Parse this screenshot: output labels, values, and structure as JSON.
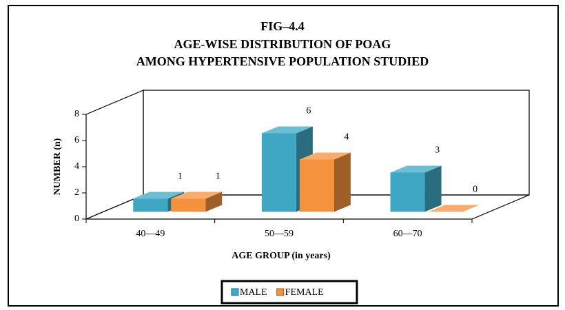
{
  "chart_data": {
    "type": "bar3d",
    "title": [
      "FIG–4.4",
      "AGE-WISE DISTRIBUTION OF POAG",
      "AMONG HYPERTENSIVE POPULATION STUDIED"
    ],
    "ylabel": "NUMBER (n)",
    "xlabel": "AGE GROUP (in years)",
    "categories": [
      "40—49",
      "50—59",
      "60—70"
    ],
    "series": [
      {
        "name": "MALE",
        "color": "#3fa7c4",
        "values": [
          1,
          6,
          3
        ]
      },
      {
        "name": "FEMALE",
        "color": "#f5923e",
        "values": [
          1,
          4,
          0
        ]
      }
    ],
    "ylim": [
      0,
      8
    ],
    "yticks": [
      0,
      2,
      4,
      6,
      8
    ],
    "legend": "bottom"
  }
}
